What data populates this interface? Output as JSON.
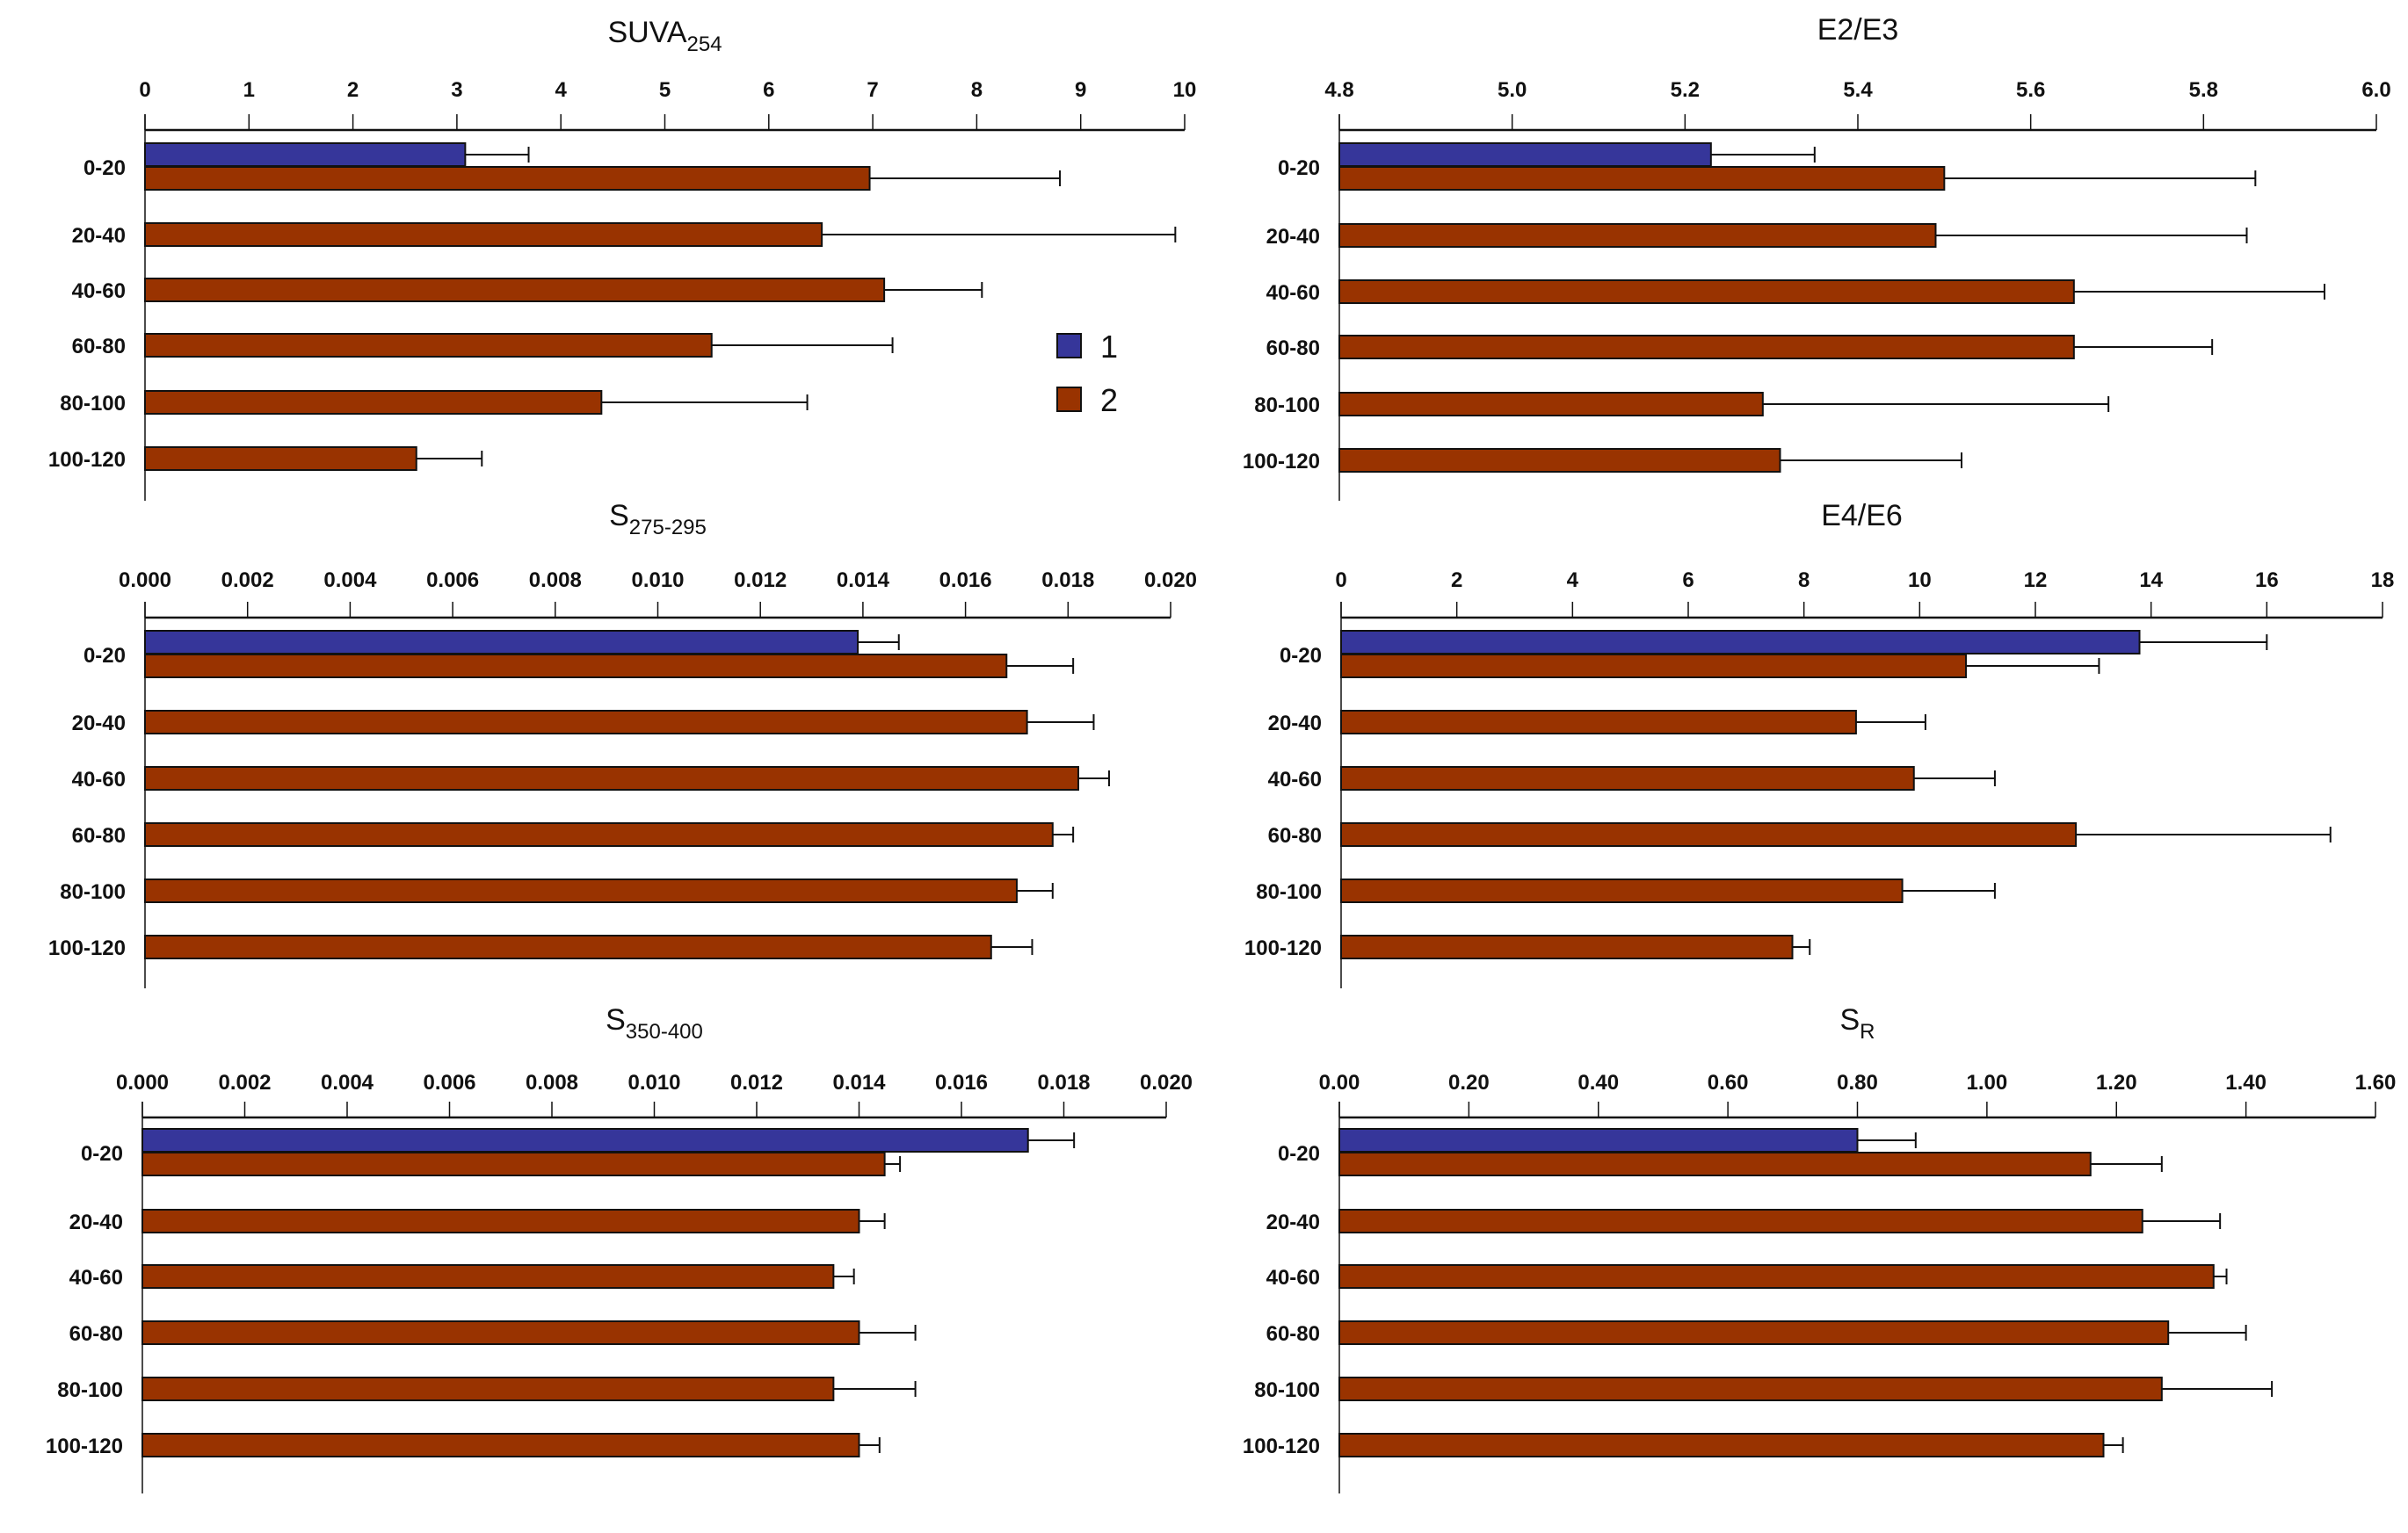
{
  "chart_data": [
    {
      "type": "bar",
      "orientation": "horizontal",
      "title": "SUVA",
      "title_sub": "254",
      "categories": [
        "0-20",
        "20-40",
        "40-60",
        "60-80",
        "80-100",
        "100-120"
      ],
      "xlim": [
        0,
        10
      ],
      "ticks": [
        0,
        1,
        2,
        3,
        4,
        5,
        6,
        7,
        8,
        9,
        10
      ],
      "tick_labels": [
        "0",
        "1",
        "2",
        "3",
        "4",
        "5",
        "6",
        "7",
        "8",
        "9",
        "10"
      ],
      "series": [
        {
          "name": "1",
          "values": [
            3.08,
            null,
            null,
            null,
            null,
            null
          ],
          "errors": [
            0.61,
            null,
            null,
            null,
            null,
            null
          ]
        },
        {
          "name": "2",
          "values": [
            6.97,
            6.51,
            7.11,
            5.45,
            4.39,
            2.61
          ],
          "errors": [
            1.83,
            3.4,
            0.94,
            1.74,
            1.98,
            0.63
          ]
        }
      ]
    },
    {
      "type": "bar",
      "orientation": "horizontal",
      "title": "E2/E3",
      "title_sub": "",
      "categories": [
        "0-20",
        "20-40",
        "40-60",
        "60-80",
        "80-100",
        "100-120"
      ],
      "xlim": [
        4.8,
        6.0
      ],
      "ticks": [
        4.8,
        5.0,
        5.2,
        5.4,
        5.6,
        5.8,
        6.0
      ],
      "tick_labels": [
        "4.8",
        "5.0",
        "5.2",
        "5.4",
        "5.6",
        "5.8",
        "6.0"
      ],
      "series": [
        {
          "name": "1",
          "values": [
            5.23,
            null,
            null,
            null,
            null,
            null
          ],
          "errors": [
            0.12,
            null,
            null,
            null,
            null,
            null
          ]
        },
        {
          "name": "2",
          "values": [
            5.5,
            5.49,
            5.65,
            5.65,
            5.29,
            5.31
          ],
          "errors": [
            0.36,
            0.36,
            0.29,
            0.16,
            0.4,
            0.21
          ]
        }
      ]
    },
    {
      "type": "bar",
      "orientation": "horizontal",
      "title": "S",
      "title_sub": "275-295",
      "categories": [
        "0-20",
        "20-40",
        "40-60",
        "60-80",
        "80-100",
        "100-120"
      ],
      "xlim": [
        0,
        0.02
      ],
      "ticks": [
        0,
        0.002,
        0.004,
        0.006,
        0.008,
        0.01,
        0.012,
        0.014,
        0.016,
        0.018,
        0.02
      ],
      "tick_labels": [
        "0.000",
        "0.002",
        "0.004",
        "0.006",
        "0.008",
        "0.010",
        "0.012",
        "0.014",
        "0.016",
        "0.018",
        "0.020"
      ],
      "series": [
        {
          "name": "1",
          "values": [
            0.0139,
            null,
            null,
            null,
            null,
            null
          ],
          "errors": [
            0.0008,
            null,
            null,
            null,
            null,
            null
          ]
        },
        {
          "name": "2",
          "values": [
            0.0168,
            0.0172,
            0.0182,
            0.0177,
            0.017,
            0.0165
          ],
          "errors": [
            0.0013,
            0.0013,
            0.0006,
            0.0004,
            0.0007,
            0.0008
          ]
        }
      ]
    },
    {
      "type": "bar",
      "orientation": "horizontal",
      "title": "E4/E6",
      "title_sub": "",
      "categories": [
        "0-20",
        "20-40",
        "40-60",
        "60-80",
        "80-100",
        "100-120"
      ],
      "xlim": [
        0,
        18
      ],
      "ticks": [
        0,
        2,
        4,
        6,
        8,
        10,
        12,
        14,
        16,
        18
      ],
      "tick_labels": [
        "0",
        "2",
        "4",
        "6",
        "8",
        "10",
        "12",
        "14",
        "16",
        "18"
      ],
      "series": [
        {
          "name": "1",
          "values": [
            13.8,
            null,
            null,
            null,
            null,
            null
          ],
          "errors": [
            2.2,
            null,
            null,
            null,
            null,
            null
          ]
        },
        {
          "name": "2",
          "values": [
            10.8,
            8.9,
            9.9,
            12.7,
            9.7,
            7.8
          ],
          "errors": [
            2.3,
            1.2,
            1.4,
            4.4,
            1.6,
            0.3
          ]
        }
      ]
    },
    {
      "type": "bar",
      "orientation": "horizontal",
      "title": "S",
      "title_sub": "350-400",
      "categories": [
        "0-20",
        "20-40",
        "40-60",
        "60-80",
        "80-100",
        "100-120"
      ],
      "xlim": [
        0,
        0.02
      ],
      "ticks": [
        0,
        0.002,
        0.004,
        0.006,
        0.008,
        0.01,
        0.012,
        0.014,
        0.016,
        0.018,
        0.02
      ],
      "tick_labels": [
        "0.000",
        "0.002",
        "0.004",
        "0.006",
        "0.008",
        "0.010",
        "0.012",
        "0.014",
        "0.016",
        "0.018",
        "0.020"
      ],
      "series": [
        {
          "name": "1",
          "values": [
            0.0173,
            null,
            null,
            null,
            null,
            null
          ],
          "errors": [
            0.0009,
            null,
            null,
            null,
            null,
            null
          ]
        },
        {
          "name": "2",
          "values": [
            0.0145,
            0.014,
            0.0135,
            0.014,
            0.0135,
            0.014
          ],
          "errors": [
            0.0003,
            0.0005,
            0.0004,
            0.0011,
            0.0016,
            0.0004
          ]
        }
      ]
    },
    {
      "type": "bar",
      "orientation": "horizontal",
      "title": "S",
      "title_sub": "R",
      "categories": [
        "0-20",
        "20-40",
        "40-60",
        "60-80",
        "80-100",
        "100-120"
      ],
      "xlim": [
        0,
        1.6
      ],
      "ticks": [
        0,
        0.2,
        0.4,
        0.6,
        0.8,
        1.0,
        1.2,
        1.4,
        1.6
      ],
      "tick_labels": [
        "0.00",
        "0.20",
        "0.40",
        "0.60",
        "0.80",
        "1.00",
        "1.20",
        "1.40",
        "1.60"
      ],
      "series": [
        {
          "name": "1",
          "values": [
            0.8,
            null,
            null,
            null,
            null,
            null
          ],
          "errors": [
            0.09,
            null,
            null,
            null,
            null,
            null
          ]
        },
        {
          "name": "2",
          "values": [
            1.16,
            1.24,
            1.35,
            1.28,
            1.27,
            1.18
          ],
          "errors": [
            0.11,
            0.12,
            0.02,
            0.12,
            0.17,
            0.03
          ]
        }
      ]
    }
  ],
  "legend": {
    "placement": "inside top-left panel, right side",
    "items": [
      {
        "label": "1",
        "color": "#36369a"
      },
      {
        "label": "2",
        "color": "#993300"
      }
    ]
  },
  "colors": {
    "series1": "#36369a",
    "series2": "#993300"
  }
}
